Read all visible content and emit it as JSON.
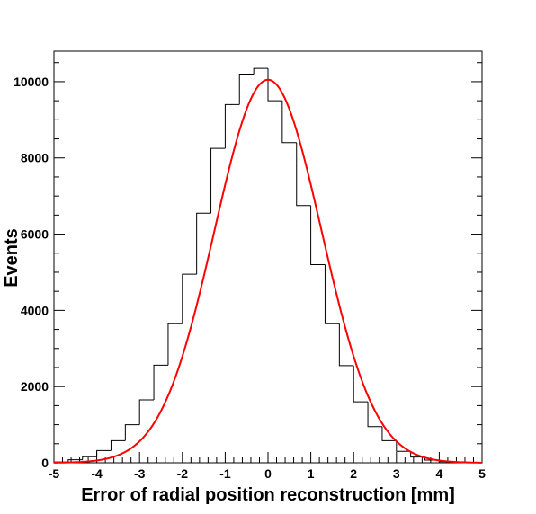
{
  "chart_data": {
    "type": "bar",
    "title": "",
    "xlabel": "Error of radial position reconstruction [mm]",
    "ylabel": "Events",
    "xlim": [
      -5,
      5
    ],
    "ylim": [
      0,
      10800
    ],
    "x_tick_labels": [
      "-5",
      "-4",
      "-3",
      "-2",
      "-1",
      "0",
      "1",
      "2",
      "3",
      "4",
      "5"
    ],
    "y_tick_labels": [
      "0",
      "2000",
      "4000",
      "6000",
      "8000",
      "10000"
    ],
    "grid": false,
    "legend": "none",
    "series": [
      {
        "style": "step-histogram",
        "color": "#000000",
        "bin_edges": [
          -5.0,
          -4.667,
          -4.333,
          -4.0,
          -3.667,
          -3.333,
          -3.0,
          -2.667,
          -2.333,
          -2.0,
          -1.667,
          -1.333,
          -1.0,
          -0.667,
          -0.333,
          0.0,
          0.333,
          0.667,
          1.0,
          1.333,
          1.667,
          2.0,
          2.333,
          2.667,
          3.0,
          3.333,
          3.667,
          4.0,
          4.333,
          4.667,
          5.0
        ],
        "values": [
          20,
          80,
          160,
          320,
          580,
          1000,
          1650,
          2560,
          3650,
          4950,
          6550,
          8250,
          9400,
          10200,
          10350,
          9500,
          8400,
          6750,
          5200,
          3650,
          2550,
          1600,
          950,
          580,
          300,
          150,
          70,
          30,
          10,
          5
        ]
      },
      {
        "style": "fit-curve",
        "color": "#ff0000",
        "function": "gaussian",
        "amplitude": 10050,
        "mean": 0.0,
        "sigma": 1.25
      }
    ]
  }
}
